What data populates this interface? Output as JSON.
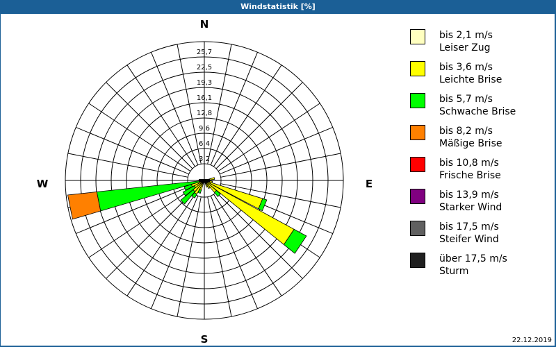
{
  "window": {
    "title": "Windstatistik [%]"
  },
  "compass": {
    "north": "N",
    "east": "E",
    "south": "S",
    "west": "W"
  },
  "footer": {
    "date": "22.12.2019"
  },
  "legend": [
    {
      "range": "bis 2,1 m/s",
      "name": "Leiser Zug",
      "color": "#ffffc0"
    },
    {
      "range": "bis 3,6 m/s",
      "name": "Leichte Brise",
      "color": "#ffff00"
    },
    {
      "range": "bis 5,7 m/s",
      "name": "Schwache Brise",
      "color": "#00ff00"
    },
    {
      "range": "bis 8,2 m/s",
      "name": "Mäßige Brise",
      "color": "#ff8000"
    },
    {
      "range": "bis 10,8 m/s",
      "name": "Frische Brise",
      "color": "#ff0000"
    },
    {
      "range": "bis 13,9 m/s",
      "name": "Starker Wind",
      "color": "#800080"
    },
    {
      "range": "bis 17,5 m/s",
      "name": "Steifer Wind",
      "color": "#606060"
    },
    {
      "range": "über 17,5 m/s",
      "name": "Sturm",
      "color": "#202020"
    }
  ],
  "chart_data": {
    "type": "wind-rose",
    "title": "Windstatistik [%]",
    "radial_ticks": [
      "3,2",
      "6,4",
      "9,6",
      "12,8",
      "16,1",
      "19,3",
      "22,5",
      "25,7"
    ],
    "rmax": 25.7,
    "sectors": 32,
    "sector_width_deg": 11.25,
    "series_order": [
      "bis 2,1 m/s",
      "bis 3,6 m/s",
      "bis 5,7 m/s",
      "bis 8,2 m/s"
    ],
    "bars": [
      {
        "dir_deg": 78.75,
        "values": [
          0.3,
          1.6,
          0,
          0
        ]
      },
      {
        "dir_deg": 101.25,
        "values": [
          0.3,
          1.2,
          0,
          0
        ]
      },
      {
        "dir_deg": 112.5,
        "values": [
          0.3,
          11.0,
          0.8,
          0
        ]
      },
      {
        "dir_deg": 123.75,
        "values": [
          0.3,
          18.6,
          2.6,
          0
        ]
      },
      {
        "dir_deg": 135,
        "values": [
          0.3,
          2.6,
          1.0,
          0
        ]
      },
      {
        "dir_deg": 146.25,
        "values": [
          0.3,
          1.4,
          0,
          0
        ]
      },
      {
        "dir_deg": 157.5,
        "values": [
          0.3,
          1.0,
          0,
          0
        ]
      },
      {
        "dir_deg": 202.5,
        "values": [
          0.3,
          1.6,
          0.6,
          0
        ]
      },
      {
        "dir_deg": 213.75,
        "values": [
          0.3,
          2.6,
          0.8,
          0
        ]
      },
      {
        "dir_deg": 225,
        "values": [
          0.3,
          2.4,
          3.0,
          0
        ]
      },
      {
        "dir_deg": 236.25,
        "values": [
          0.3,
          1.8,
          2.4,
          0
        ]
      },
      {
        "dir_deg": 247.5,
        "values": [
          0.3,
          2.2,
          1.4,
          0
        ]
      },
      {
        "dir_deg": 258.75,
        "values": [
          0.3,
          0.5,
          19.2,
          5.4
        ]
      },
      {
        "dir_deg": 270,
        "values": [
          0.3,
          0.4,
          0,
          0
        ]
      }
    ],
    "legend_position": "right",
    "grid": true
  }
}
